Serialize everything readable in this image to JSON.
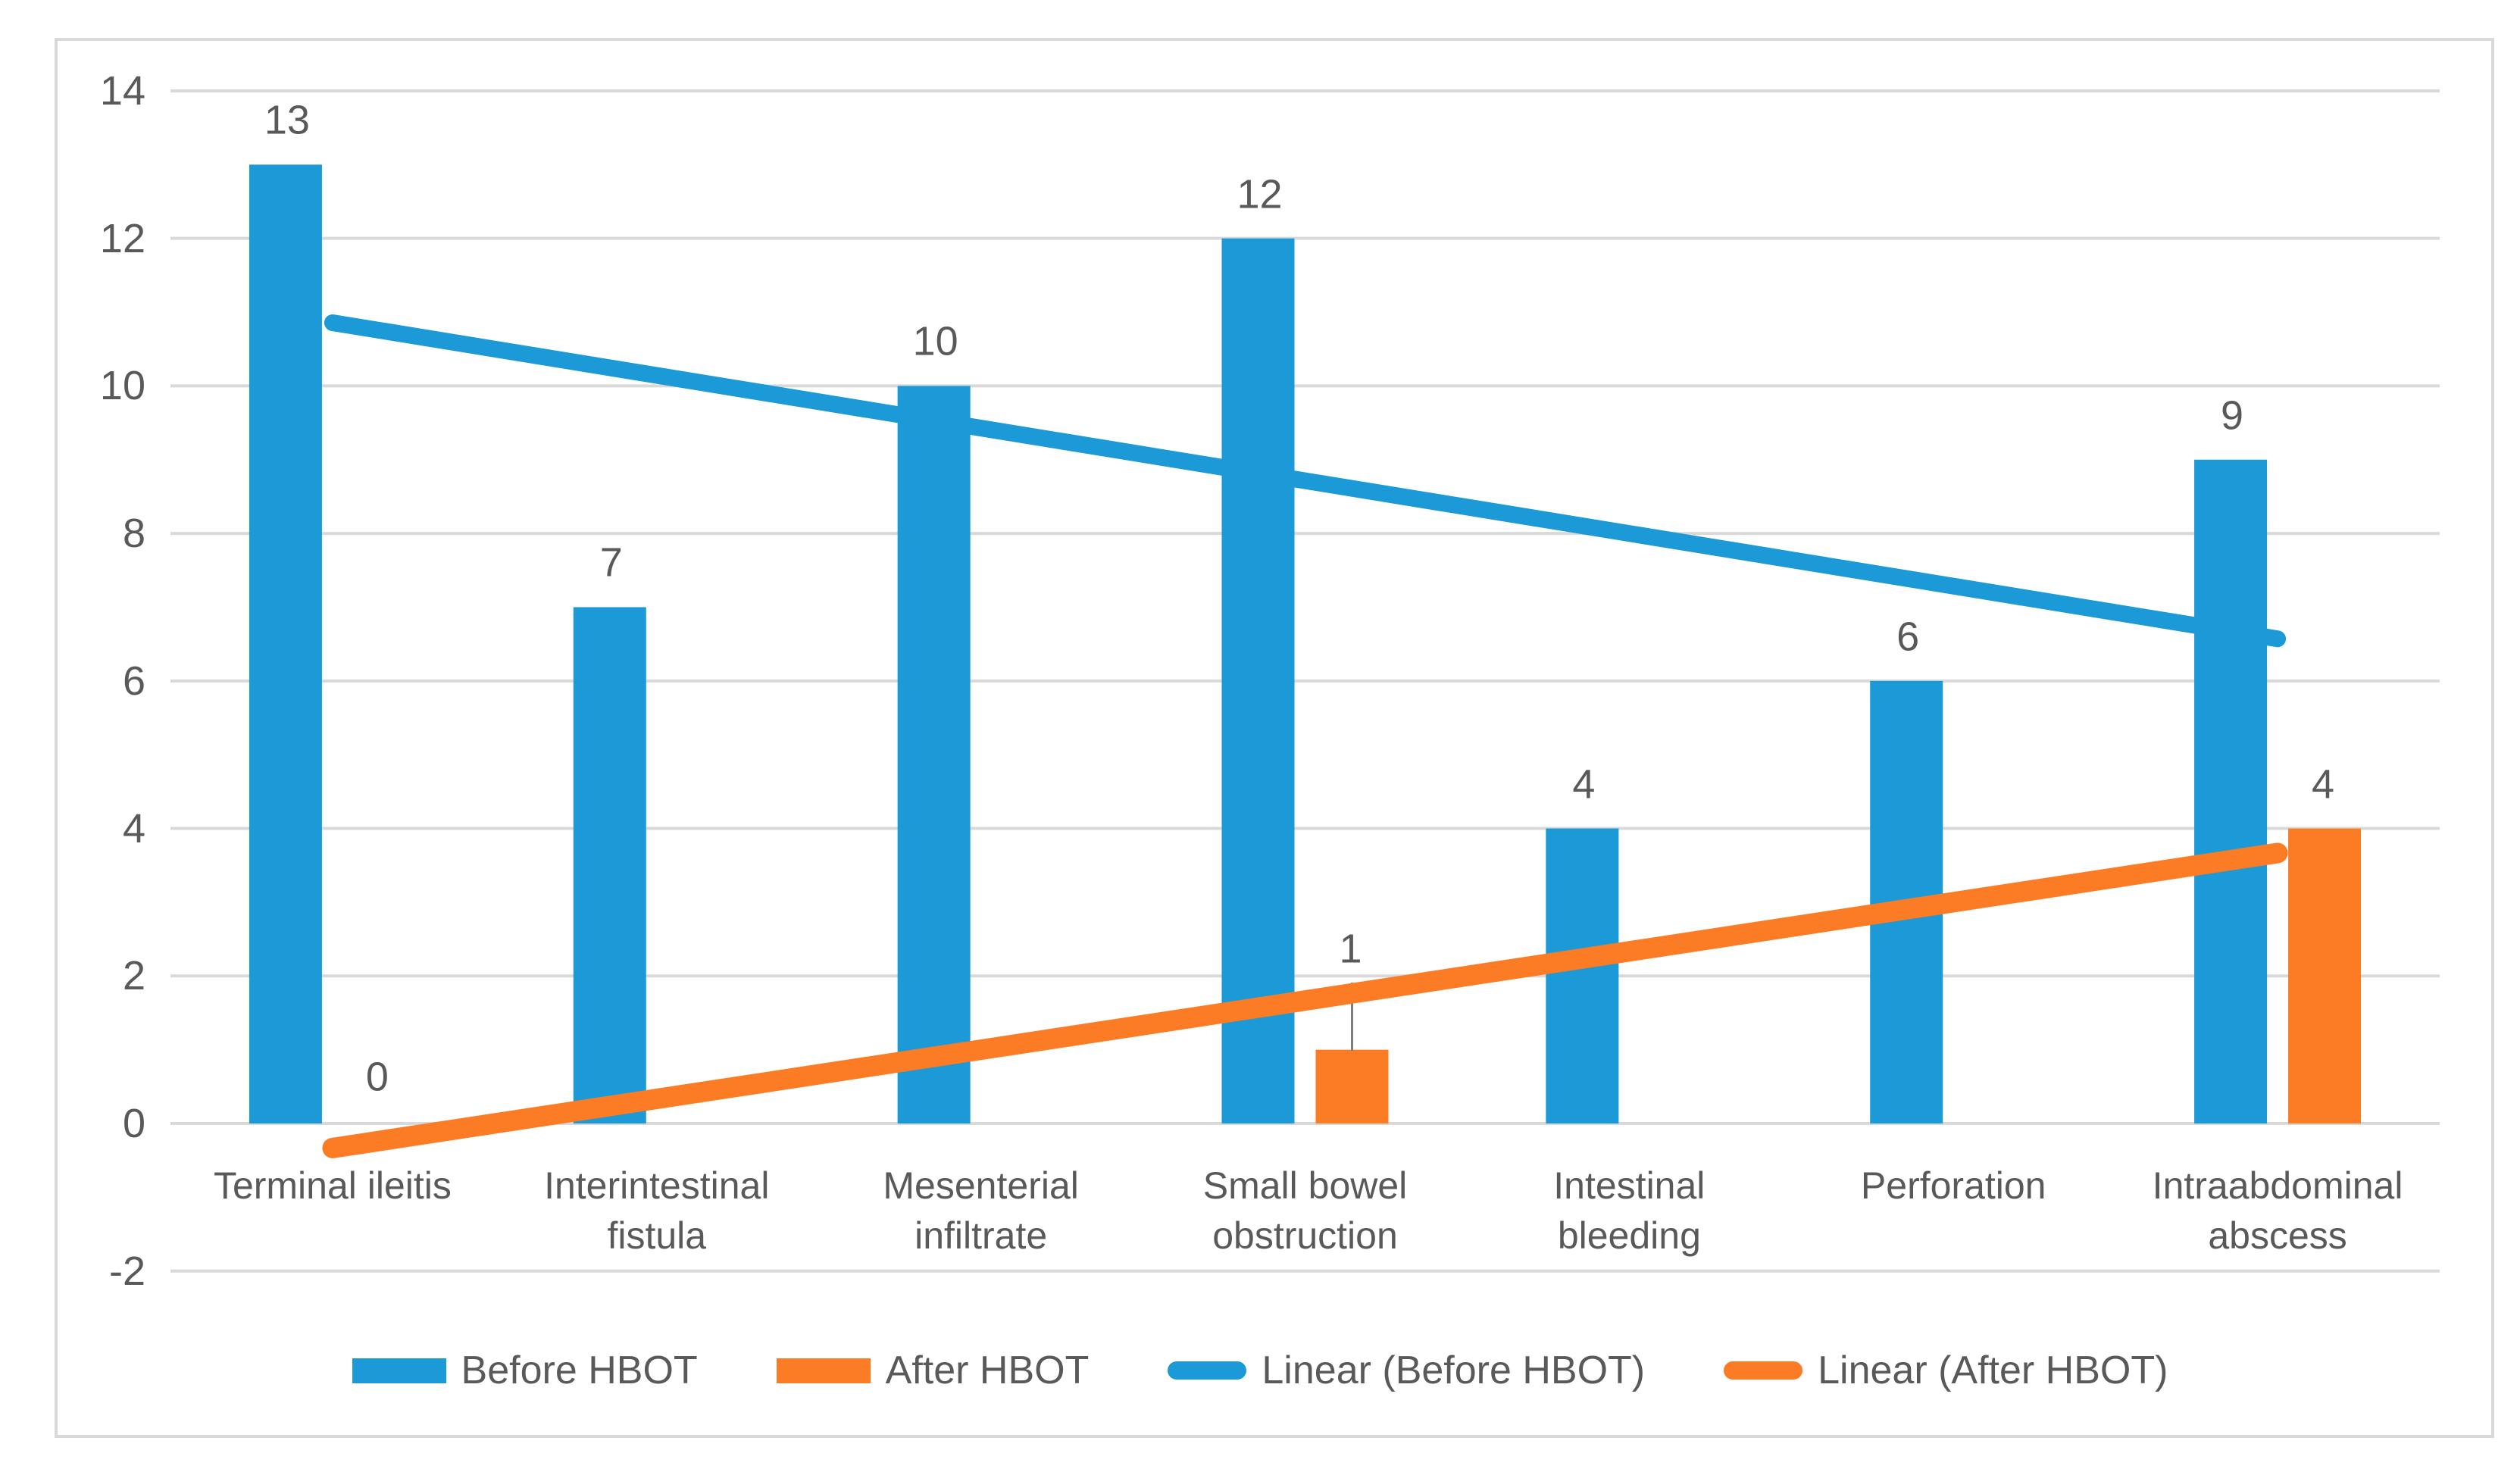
{
  "page": {
    "background": "#ffffff"
  },
  "chart_data": {
    "type": "bar",
    "title": "",
    "xlabel": "",
    "ylabel": "",
    "categories": [
      "Terminal ileitis",
      "Interintestinal\nfistula",
      "Mesenterial\ninfiltrate",
      "Small bowel\nobstruction",
      "Intestinal\nbleeding",
      "Perforation",
      "Intraabdominal\nabscess"
    ],
    "series": [
      {
        "name": "Before HBOT",
        "color": "#1b9ad7",
        "values": [
          13,
          7,
          10,
          12,
          4,
          6,
          9
        ],
        "data_labels": [
          "13",
          "7",
          "10",
          "12",
          "4",
          "6",
          "9"
        ]
      },
      {
        "name": "After HBOT",
        "color": "#fb7c24",
        "values": [
          0,
          null,
          null,
          1,
          null,
          null,
          4
        ],
        "data_labels": [
          "0",
          "",
          "",
          "1",
          "",
          "",
          "4"
        ]
      }
    ],
    "trendlines": [
      {
        "name": "Linear (Before HBOT)",
        "color": "#1b9ad7",
        "start_value": 10.857,
        "end_value": 6.571,
        "stroke_width": 22
      },
      {
        "name": "Linear (After HBOT)",
        "color": "#fb7c24",
        "start_value": -0.333,
        "end_value": 3.667,
        "stroke_width": 27
      }
    ],
    "y_axis": {
      "min": -2,
      "max": 14,
      "step": 2,
      "tick_labels": [
        "14",
        "12",
        "10",
        "8",
        "6",
        "4",
        "2",
        "0",
        "-2"
      ]
    },
    "grid": true,
    "gridline_color": "#d9d9d9",
    "legend_position": "bottom",
    "legend": [
      {
        "label": "Before HBOT",
        "swatch": "rect",
        "color": "#1b9ad7"
      },
      {
        "label": "After HBOT",
        "swatch": "rect",
        "color": "#fb7c24"
      },
      {
        "label": "Linear (Before HBOT)",
        "swatch": "line",
        "color": "#1b9ad7"
      },
      {
        "label": "Linear (After HBOT)",
        "swatch": "line",
        "color": "#fb7c24"
      }
    ],
    "annotations": [
      {
        "type": "leader-line",
        "category_index": 3,
        "series": "After HBOT",
        "color": "#7f7f7f"
      }
    ]
  },
  "colors": {
    "text": "#595959",
    "grid": "#d9d9d9",
    "frame_border": "#d9d9d9",
    "leader_line": "#7f7f7f"
  }
}
